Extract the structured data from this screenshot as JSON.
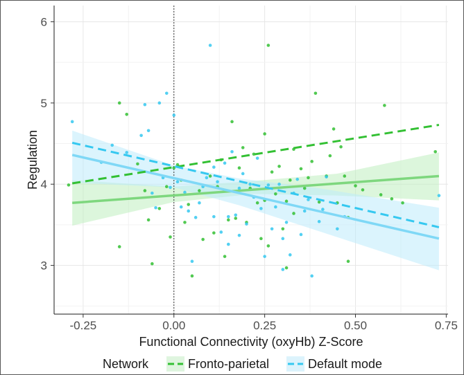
{
  "chart_data": {
    "type": "scatter",
    "xlabel": "Functional Connectivity (oxyHb) Z-Score",
    "ylabel": "Regulation",
    "xlim": [
      -0.33,
      0.755
    ],
    "ylim": [
      2.4,
      6.2
    ],
    "xticks": [
      -0.25,
      0.0,
      0.25,
      0.5,
      0.75
    ],
    "xtick_labels": [
      "-0.25",
      "0.00",
      "0.25",
      "0.50",
      "0.75"
    ],
    "yticks": [
      3,
      4,
      5,
      6
    ],
    "ytick_labels": [
      "3",
      "4",
      "5",
      "6"
    ],
    "vline_x": 0,
    "grid": true,
    "legend": {
      "title": "Network",
      "position": "bottom"
    },
    "colors": {
      "fronto": "#33c033",
      "default": "#35c8f0",
      "fronto_band": "#bfefbf",
      "default_band": "#bdebfb"
    },
    "series": [
      {
        "name": "Fronto-parietal",
        "color": "#33c033",
        "dashed_fit": [
          [
            -0.28,
            4.01
          ],
          [
            0.73,
            4.73
          ]
        ],
        "solid_fit": [
          [
            -0.28,
            3.77
          ],
          [
            0.73,
            4.1
          ]
        ],
        "ci_band": {
          "x": [
            -0.28,
            0.0,
            0.22,
            0.45,
            0.73
          ],
          "lower": [
            3.49,
            3.78,
            3.88,
            3.86,
            3.8
          ],
          "upper": [
            4.05,
            3.97,
            4.04,
            4.13,
            4.39
          ]
        },
        "points": [
          [
            -0.29,
            3.99
          ],
          [
            -0.15,
            5.0
          ],
          [
            -0.15,
            3.23
          ],
          [
            -0.13,
            4.86
          ],
          [
            -0.1,
            4.25
          ],
          [
            -0.08,
            3.92
          ],
          [
            -0.07,
            3.56
          ],
          [
            -0.06,
            3.02
          ],
          [
            -0.04,
            3.7
          ],
          [
            -0.02,
            3.97
          ],
          [
            -0.01,
            3.35
          ],
          [
            0.0,
            4.2
          ],
          [
            0.01,
            4.24
          ],
          [
            0.02,
            4.05
          ],
          [
            0.03,
            3.53
          ],
          [
            0.04,
            3.75
          ],
          [
            0.05,
            2.87
          ],
          [
            0.07,
            3.92
          ],
          [
            0.08,
            3.32
          ],
          [
            0.1,
            4.1
          ],
          [
            0.11,
            3.4
          ],
          [
            0.12,
            3.97
          ],
          [
            0.13,
            4.3
          ],
          [
            0.14,
            3.11
          ],
          [
            0.15,
            3.56
          ],
          [
            0.16,
            4.77
          ],
          [
            0.17,
            3.58
          ],
          [
            0.18,
            4.2
          ],
          [
            0.19,
            4.45
          ],
          [
            0.2,
            3.53
          ],
          [
            0.21,
            3.95
          ],
          [
            0.22,
            4.37
          ],
          [
            0.23,
            3.77
          ],
          [
            0.24,
            3.33
          ],
          [
            0.25,
            4.62
          ],
          [
            0.25,
            3.8
          ],
          [
            0.26,
            5.71
          ],
          [
            0.26,
            3.24
          ],
          [
            0.27,
            4.15
          ],
          [
            0.28,
            3.88
          ],
          [
            0.29,
            4.22
          ],
          [
            0.3,
            3.45
          ],
          [
            0.31,
            3.79
          ],
          [
            0.31,
            2.97
          ],
          [
            0.32,
            4.05
          ],
          [
            0.33,
            4.43
          ],
          [
            0.33,
            3.64
          ],
          [
            0.35,
            4.19
          ],
          [
            0.36,
            3.95
          ],
          [
            0.37,
            4.08
          ],
          [
            0.38,
            4.28
          ],
          [
            0.39,
            5.12
          ],
          [
            0.4,
            3.78
          ],
          [
            0.42,
            4.1
          ],
          [
            0.43,
            4.35
          ],
          [
            0.44,
            4.68
          ],
          [
            0.45,
            3.77
          ],
          [
            0.46,
            4.46
          ],
          [
            0.47,
            4.1
          ],
          [
            0.48,
            3.59
          ],
          [
            0.48,
            3.05
          ],
          [
            0.5,
            3.98
          ],
          [
            0.52,
            3.93
          ],
          [
            0.57,
            3.87
          ],
          [
            0.58,
            4.97
          ],
          [
            0.6,
            3.82
          ],
          [
            0.63,
            3.77
          ],
          [
            0.72,
            4.4
          ]
        ]
      },
      {
        "name": "Default mode",
        "color": "#35c8f0",
        "dashed_fit": [
          [
            -0.28,
            4.51
          ],
          [
            0.73,
            3.47
          ]
        ],
        "solid_fit": [
          [
            -0.28,
            4.36
          ],
          [
            0.73,
            3.33
          ]
        ],
        "ci_band": {
          "x": [
            -0.28,
            0.0,
            0.18,
            0.4,
            0.73
          ],
          "lower": [
            4.02,
            3.96,
            3.74,
            3.42,
            2.94
          ],
          "upper": [
            4.66,
            4.23,
            4.07,
            3.95,
            3.71
          ]
        },
        "points": [
          [
            -0.28,
            4.77
          ],
          [
            -0.2,
            4.27
          ],
          [
            -0.17,
            4.48
          ],
          [
            -0.13,
            4.39
          ],
          [
            -0.09,
            4.6
          ],
          [
            -0.08,
            4.98
          ],
          [
            -0.07,
            4.66
          ],
          [
            -0.06,
            3.89
          ],
          [
            -0.05,
            3.71
          ],
          [
            -0.04,
            5.0
          ],
          [
            -0.03,
            4.08
          ],
          [
            -0.02,
            5.12
          ],
          [
            -0.01,
            3.96
          ],
          [
            0.0,
            4.85
          ],
          [
            0.01,
            4.03
          ],
          [
            0.02,
            3.72
          ],
          [
            0.03,
            3.9
          ],
          [
            0.04,
            3.67
          ],
          [
            0.05,
            3.05
          ],
          [
            0.06,
            3.59
          ],
          [
            0.07,
            3.77
          ],
          [
            0.08,
            3.97
          ],
          [
            0.09,
            4.08
          ],
          [
            0.1,
            5.71
          ],
          [
            0.11,
            4.21
          ],
          [
            0.11,
            3.6
          ],
          [
            0.12,
            4.03
          ],
          [
            0.13,
            3.41
          ],
          [
            0.14,
            4.26
          ],
          [
            0.15,
            3.6
          ],
          [
            0.15,
            3.26
          ],
          [
            0.16,
            4.4
          ],
          [
            0.17,
            3.62
          ],
          [
            0.18,
            3.95
          ],
          [
            0.18,
            3.37
          ],
          [
            0.19,
            4.13
          ],
          [
            0.2,
            3.51
          ],
          [
            0.21,
            4.0
          ],
          [
            0.22,
            3.84
          ],
          [
            0.23,
            4.32
          ],
          [
            0.24,
            3.7
          ],
          [
            0.25,
            3.11
          ],
          [
            0.26,
            3.99
          ],
          [
            0.27,
            3.45
          ],
          [
            0.28,
            3.72
          ],
          [
            0.29,
            4.0
          ],
          [
            0.3,
            3.33
          ],
          [
            0.3,
            2.95
          ],
          [
            0.31,
            3.53
          ],
          [
            0.32,
            3.13
          ],
          [
            0.33,
            3.89
          ],
          [
            0.34,
            4.06
          ],
          [
            0.35,
            3.38
          ],
          [
            0.36,
            3.67
          ],
          [
            0.37,
            3.81
          ],
          [
            0.38,
            2.87
          ],
          [
            0.4,
            3.54
          ],
          [
            0.41,
            3.69
          ],
          [
            0.42,
            4.09
          ],
          [
            0.45,
            3.45
          ],
          [
            0.47,
            3.6
          ],
          [
            0.73,
            3.86
          ]
        ]
      }
    ]
  }
}
